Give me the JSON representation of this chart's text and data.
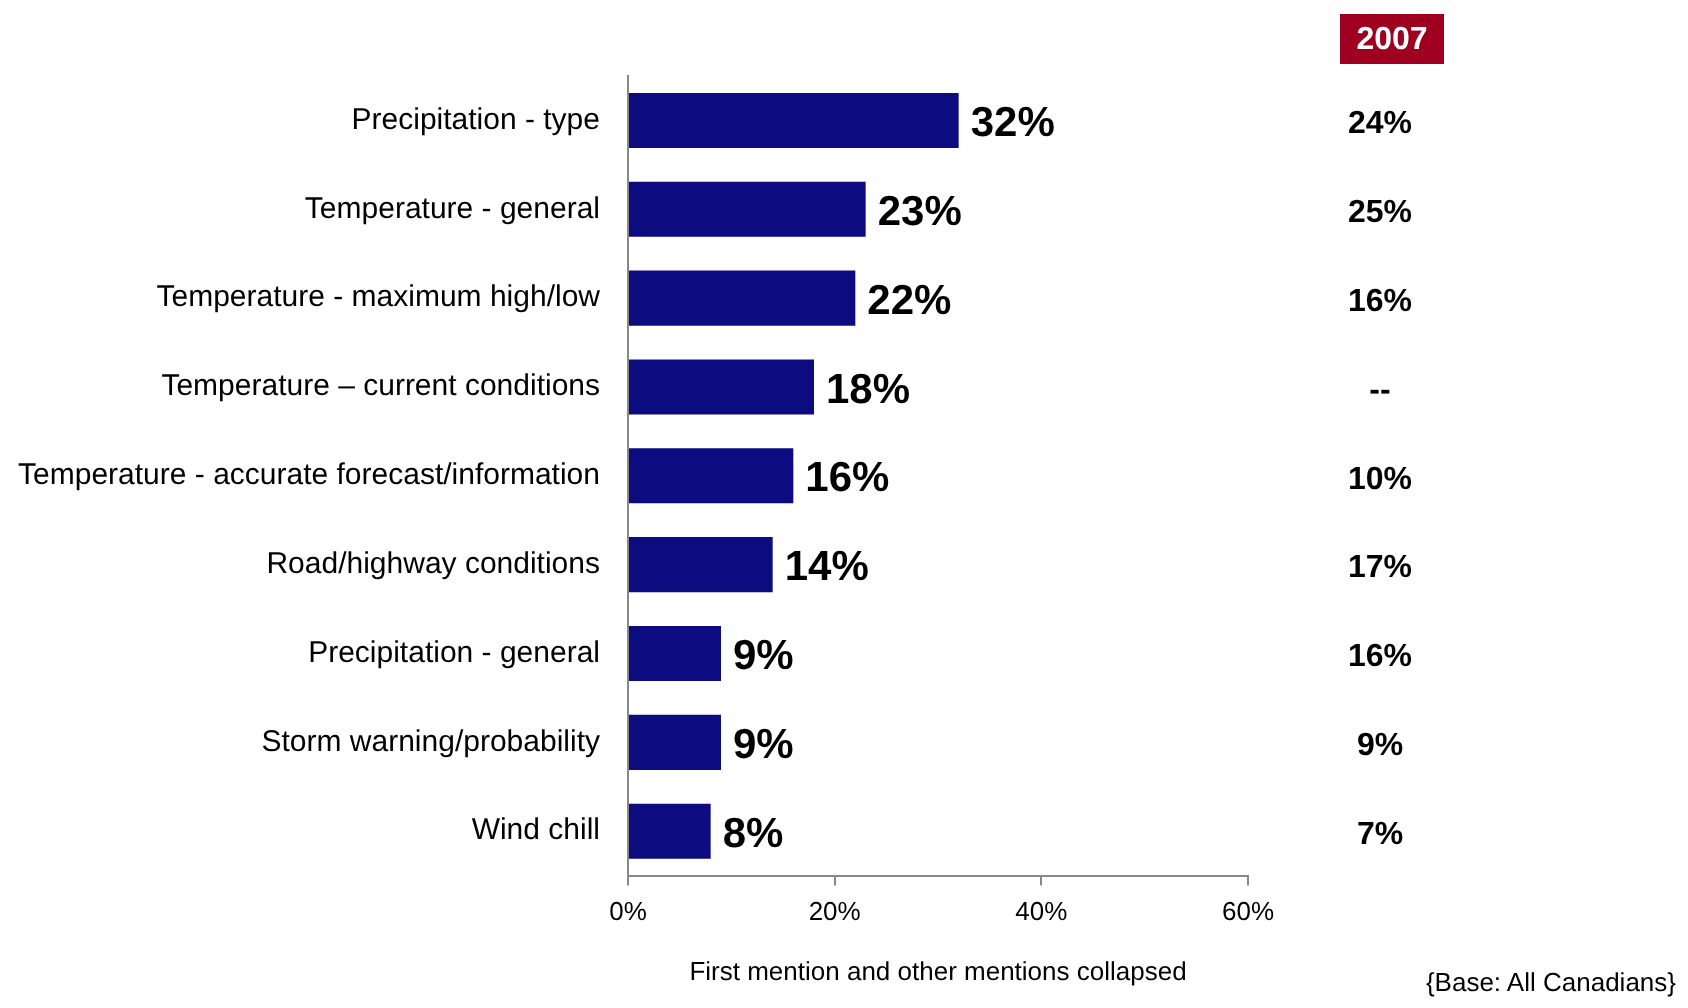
{
  "chart_data": {
    "type": "bar",
    "orientation": "horizontal",
    "categories": [
      "Precipitation - type",
      "Temperature - general",
      "Temperature - maximum high/low",
      "Temperature – current conditions",
      "Temperature - accurate forecast/information",
      "Road/highway conditions",
      "Precipitation - general",
      "Storm warning/probability",
      "Wind chill"
    ],
    "values": [
      32,
      23,
      22,
      18,
      16,
      14,
      9,
      9,
      8
    ],
    "value_labels": [
      "32%",
      "23%",
      "22%",
      "18%",
      "16%",
      "14%",
      "9%",
      "9%",
      "8%"
    ],
    "color": "#0c0c80",
    "xlim": [
      0,
      60
    ],
    "xticks": [
      {
        "value": 0,
        "label": "0%"
      },
      {
        "value": 20,
        "label": "20%"
      },
      {
        "value": 40,
        "label": "40%"
      },
      {
        "value": 60,
        "label": "60%"
      }
    ],
    "xlabel": "First mention and other mentions collapsed",
    "grid": false,
    "legend": false,
    "annotations": [
      "2007",
      "24%",
      "25%",
      "16%",
      "--",
      "10%",
      "17%",
      "16%",
      "9%",
      "7%",
      "{Base: All Canadians}"
    ]
  }
}
